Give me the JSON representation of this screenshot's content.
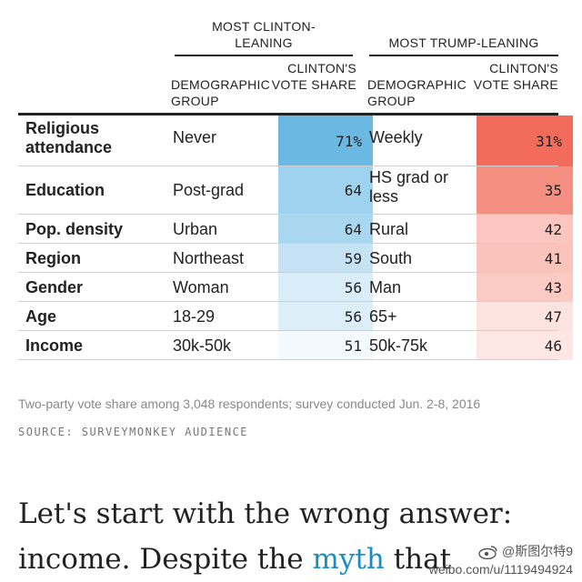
{
  "table": {
    "group_headers": {
      "clinton": "MOST CLINTON-\nLEANING",
      "trump": "MOST TRUMP-LEANING"
    },
    "columns": {
      "clinton_demo": "DEMOGRAPHIC GROUP",
      "clinton_share": "CLINTON'S VOTE SHARE",
      "trump_demo": "DEMOGRAPHIC GROUP",
      "trump_share": "CLINTON'S VOTE SHARE"
    },
    "rows": [
      {
        "category": "Religious attendance",
        "clinton_group": "Never",
        "clinton_share": "71%",
        "trump_group": "Weekly",
        "trump_share": "31%"
      },
      {
        "category": "Education",
        "clinton_group": "Post-grad",
        "clinton_share": "64",
        "trump_group": "HS grad or less",
        "trump_share": "35"
      },
      {
        "category": "Pop. density",
        "clinton_group": "Urban",
        "clinton_share": "64",
        "trump_group": "Rural",
        "trump_share": "42"
      },
      {
        "category": "Region",
        "clinton_group": "Northeast",
        "clinton_share": "59",
        "trump_group": "South",
        "trump_share": "41"
      },
      {
        "category": "Gender",
        "clinton_group": "Woman",
        "clinton_share": "56",
        "trump_group": "Man",
        "trump_share": "43"
      },
      {
        "category": "Age",
        "clinton_group": "18-29",
        "clinton_share": "56",
        "trump_group": "65+",
        "trump_share": "47"
      },
      {
        "category": "Income",
        "clinton_group": "30k-50k",
        "clinton_share": "51",
        "trump_group": "50k-75k",
        "trump_share": "46"
      }
    ],
    "colors": {
      "clinton": [
        "#6bb9e2",
        "#9fd2ee",
        "#a9d7ef",
        "#c5e3f4",
        "#d9eef9",
        "#dceff9",
        "#f4f9fd"
      ],
      "trump": [
        "#f26b5b",
        "#f58f82",
        "#fac6bf",
        "#fac4bd",
        "#fbcac3",
        "#fde3df",
        "#fde6e3"
      ]
    }
  },
  "note": "Two-party vote share among 3,048 respondents; survey conducted Jun. 2-8, 2016",
  "source": "SOURCE: SURVEYMONKEY AUDIENCE",
  "body": {
    "line1": "Let's start with the wrong answer:",
    "line2_before": "income. Despite the ",
    "line2_link": "myth",
    "line2_after": " that"
  },
  "watermark": {
    "handle": "@斯图尔特9",
    "url": "weibo.com/u/1119494924",
    "logo_icon": "weibo-logo-icon"
  }
}
